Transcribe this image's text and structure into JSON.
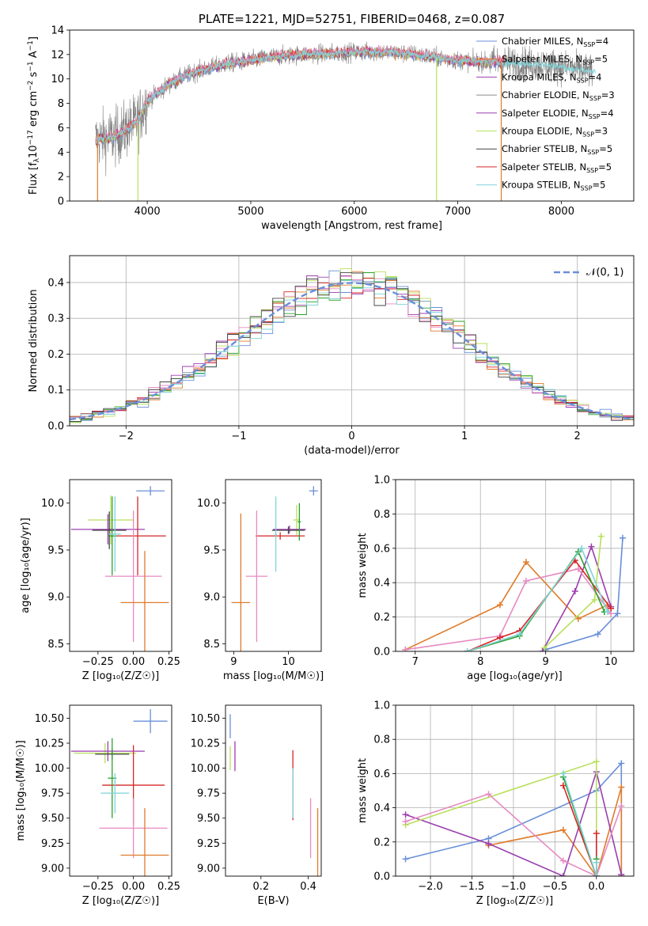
{
  "figure": {
    "colors": [
      "#6a8fd8",
      "#e07b2a",
      "#9b3fb0",
      "#b7e05a",
      "#8c8c8c",
      "#d62728",
      "#e78ac3",
      "#2ca02c",
      "#7fd3d8",
      "#444444"
    ]
  },
  "chart_data": [
    {
      "id": "spectrum",
      "type": "line",
      "title": "PLATE=1221, MJD=52751, FIBERID=0468, z=0.087",
      "xlabel": "wavelength [Angstrom, rest frame]",
      "ylabel_parts": [
        "Flux [f",
        "λ",
        "10",
        "−17",
        " erg cm",
        "−2",
        " s",
        "−1",
        " A",
        "−1",
        "]"
      ],
      "xlim": [
        3250,
        8700
      ],
      "ylim": [
        0,
        14
      ],
      "xticks": [
        4000,
        5000,
        6000,
        7000,
        8000
      ],
      "yticks": [
        0,
        2,
        4,
        6,
        8,
        10,
        12,
        14
      ],
      "continuum": [
        [
          3500,
          5.0
        ],
        [
          3700,
          5.3
        ],
        [
          3900,
          6.5
        ],
        [
          4000,
          8.2
        ],
        [
          4200,
          9.5
        ],
        [
          4400,
          10.4
        ],
        [
          4600,
          10.9
        ],
        [
          4800,
          11.3
        ],
        [
          5000,
          11.5
        ],
        [
          5200,
          11.8
        ],
        [
          5500,
          12.0
        ],
        [
          5800,
          12.1
        ],
        [
          6000,
          12.2
        ],
        [
          6300,
          12.2
        ],
        [
          6600,
          12.0
        ],
        [
          6900,
          11.6
        ],
        [
          7200,
          11.4
        ],
        [
          7500,
          11.3
        ],
        [
          7800,
          11.2
        ],
        [
          8000,
          11.0
        ],
        [
          8300,
          10.6
        ]
      ],
      "spikes": [
        {
          "x": 3520,
          "color": "#e07b2a",
          "y": 0
        },
        {
          "x": 3910,
          "color": "#b7e05a",
          "y": 0
        },
        {
          "x": 6795,
          "color": "#b7e05a",
          "y": 0
        },
        {
          "x": 7420,
          "color": "#e07b2a",
          "y": 0
        }
      ],
      "legend": [
        {
          "pre": "Chabrier MILES, N",
          "sub": "SSP",
          "post": "=4",
          "color": "#6a8fd8"
        },
        {
          "pre": "Salpeter MILES, N",
          "sub": "SSP",
          "post": "=5",
          "color": "#e07b2a"
        },
        {
          "pre": "Kroupa MILES, N",
          "sub": "SSP",
          "post": "=4",
          "color": "#9b3fb0"
        },
        {
          "pre": "Chabrier ELODIE, N",
          "sub": "SSP",
          "post": "=3",
          "color": "#8c8c8c"
        },
        {
          "pre": "Salpeter ELODIE, N",
          "sub": "SSP",
          "post": "=4",
          "color": "#9b3fb0"
        },
        {
          "pre": "Kroupa ELODIE, N",
          "sub": "SSP",
          "post": "=3",
          "color": "#b7e05a"
        },
        {
          "pre": "Chabrier STELIB, N",
          "sub": "SSP",
          "post": "=5",
          "color": "#444444"
        },
        {
          "pre": "Salpeter STELIB, N",
          "sub": "SSP",
          "post": "=5",
          "color": "#d62728"
        },
        {
          "pre": "Kroupa STELIB, N",
          "sub": "SSP",
          "post": "=5",
          "color": "#7fd3d8"
        }
      ]
    },
    {
      "id": "residuals",
      "type": "line",
      "xlabel": "(data-model)/error",
      "ylabel": "Normed distribution",
      "xlim": [
        -2.5,
        2.5
      ],
      "ylim": [
        0,
        0.475
      ],
      "xticks": [
        -2,
        -1,
        0,
        1,
        2
      ],
      "yticks": [
        0.0,
        0.1,
        0.2,
        0.3,
        0.4
      ],
      "bin_width": 0.1,
      "legend": {
        "label": "𝒩(0, 1)",
        "color": "#6a8fd8"
      },
      "grid": true
    },
    {
      "id": "age-vs-Z",
      "type": "scatter",
      "xlabel": "Z [log₁₀(Z/Z☉)]",
      "ylabel": "age  [log₁₀(age/yr)]",
      "xlim": [
        -0.45,
        0.27
      ],
      "ylim": [
        8.42,
        10.25
      ],
      "xticks": [
        -0.25,
        0.0,
        0.25
      ],
      "yticks": [
        8.5,
        9.0,
        9.5,
        10.0
      ],
      "points": [
        {
          "x": 0.12,
          "y": 10.13,
          "xerr": 0.1,
          "yerr": 0.05,
          "color": "#6a8fd8"
        },
        {
          "x": -0.16,
          "y": 9.82,
          "xerr": 0.16,
          "yerr": 0.26,
          "color": "#b7e05a"
        },
        {
          "x": -0.18,
          "y": 9.72,
          "xerr": 0.26,
          "yerr": 0.16,
          "color": "#9b3fb0"
        },
        {
          "x": -0.17,
          "y": 9.71,
          "xerr": 0.12,
          "yerr": 0.2,
          "color": "#444444"
        },
        {
          "x": 0.03,
          "y": 9.65,
          "xerr": 0.2,
          "yerr": 0.42,
          "color": "#d62728"
        },
        {
          "x": -0.15,
          "y": 9.65,
          "xerr": 0.03,
          "yerr": 0.42,
          "color": "#2ca02c"
        },
        {
          "x": -0.13,
          "y": 9.67,
          "xerr": 0.04,
          "yerr": 0.4,
          "color": "#7fd3d8"
        },
        {
          "x": 0.0,
          "y": 9.22,
          "xerr": 0.2,
          "yerr": 0.7,
          "color": "#e78ac3"
        },
        {
          "x": 0.08,
          "y": 8.94,
          "xerr": 0.17,
          "yerr": 0.55,
          "color": "#e07b2a"
        }
      ]
    },
    {
      "id": "age-vs-mass",
      "type": "scatter",
      "xlabel": "mass [log₁₀(M/M☉)]",
      "ylabel": "",
      "xlim": [
        8.85,
        10.6
      ],
      "ylim": [
        8.42,
        10.25
      ],
      "xticks": [
        9,
        10
      ],
      "yticks": [
        8.5,
        9.0,
        9.5,
        10.0
      ],
      "points": [
        {
          "x": 10.46,
          "y": 10.13,
          "xerr": 0.08,
          "yerr": 0.05,
          "color": "#6a8fd8"
        },
        {
          "x": 10.15,
          "y": 9.82,
          "xerr": 0.06,
          "yerr": 0.16,
          "color": "#b7e05a"
        },
        {
          "x": 10.02,
          "y": 9.72,
          "xerr": 0.3,
          "yerr": 0.04,
          "color": "#9b3fb0"
        },
        {
          "x": 10.0,
          "y": 9.71,
          "xerr": 0.3,
          "yerr": 0.04,
          "color": "#444444"
        },
        {
          "x": 9.85,
          "y": 9.65,
          "xerr": 0.45,
          "yerr": 0.04,
          "color": "#d62728"
        },
        {
          "x": 10.2,
          "y": 9.8,
          "xerr": 0.03,
          "yerr": 0.2,
          "color": "#2ca02c"
        },
        {
          "x": 9.77,
          "y": 9.67,
          "xerr": 0.02,
          "yerr": 0.4,
          "color": "#7fd3d8"
        },
        {
          "x": 9.42,
          "y": 9.22,
          "xerr": 0.2,
          "yerr": 0.7,
          "color": "#e78ac3"
        },
        {
          "x": 9.13,
          "y": 8.94,
          "xerr": 0.17,
          "yerr": 0.95,
          "color": "#e07b2a"
        }
      ]
    },
    {
      "id": "weight-vs-age",
      "type": "line",
      "xlabel": "age  [log₁₀(age/yr)]",
      "ylabel": "mass weight",
      "xlim": [
        6.7,
        10.35
      ],
      "ylim": [
        0,
        1.0
      ],
      "xticks": [
        7,
        8,
        9,
        10
      ],
      "yticks": [
        0.0,
        0.2,
        0.4,
        0.6,
        0.8,
        1.0
      ],
      "grid": true,
      "series": [
        {
          "color": "#6a8fd8",
          "x": [
            9.0,
            9.8,
            10.1,
            10.18
          ],
          "y": [
            0.01,
            0.1,
            0.22,
            0.66
          ]
        },
        {
          "color": "#e07b2a",
          "x": [
            6.85,
            8.3,
            8.7,
            9.5,
            9.95
          ],
          "y": [
            0.01,
            0.27,
            0.52,
            0.19,
            0.27
          ]
        },
        {
          "color": "#9b3fb0",
          "x": [
            8.95,
            9.45,
            9.7,
            10.0
          ],
          "y": [
            0.0,
            0.35,
            0.61,
            0.26
          ]
        },
        {
          "color": "#b7e05a",
          "x": [
            8.98,
            9.75,
            9.85
          ],
          "y": [
            0.02,
            0.3,
            0.67
          ]
        },
        {
          "color": "#e78ac3",
          "x": [
            6.85,
            8.3,
            8.7,
            9.5,
            10.0
          ],
          "y": [
            0.01,
            0.09,
            0.41,
            0.48,
            0.22
          ]
        },
        {
          "color": "#d62728",
          "x": [
            7.8,
            8.3,
            8.6,
            9.45,
            10.0
          ],
          "y": [
            0.0,
            0.08,
            0.12,
            0.53,
            0.25
          ]
        },
        {
          "color": "#2ca02c",
          "x": [
            7.8,
            8.6,
            9.5,
            9.9
          ],
          "y": [
            0.0,
            0.09,
            0.58,
            0.23
          ]
        },
        {
          "color": "#7fd3d8",
          "x": [
            7.8,
            8.6,
            9.55,
            9.95
          ],
          "y": [
            0.0,
            0.1,
            0.6,
            0.23
          ]
        }
      ]
    },
    {
      "id": "mass-vs-Z",
      "type": "scatter",
      "xlabel": "Z [log₁₀(Z/Z☉)]",
      "ylabel": "mass [log₁₀(M/M☉)]",
      "xlim": [
        -0.45,
        0.27
      ],
      "ylim": [
        8.92,
        10.63
      ],
      "xticks": [
        -0.25,
        0.0,
        0.25
      ],
      "yticks": [
        9.0,
        9.25,
        9.5,
        9.75,
        10.0,
        10.25,
        10.5
      ],
      "points": [
        {
          "x": 0.12,
          "y": 10.47,
          "xerr": 0.12,
          "yerr": 0.12,
          "color": "#6a8fd8"
        },
        {
          "x": -0.2,
          "y": 10.15,
          "xerr": 0.22,
          "yerr": 0.1,
          "color": "#b7e05a"
        },
        {
          "x": -0.18,
          "y": 10.17,
          "xerr": 0.26,
          "yerr": 0.1,
          "color": "#9b3fb0"
        },
        {
          "x": -0.15,
          "y": 10.14,
          "xerr": 0.12,
          "yerr": 0.05,
          "color": "#444444"
        },
        {
          "x": 0.0,
          "y": 9.83,
          "xerr": 0.22,
          "yerr": 0.4,
          "color": "#d62728"
        },
        {
          "x": -0.15,
          "y": 9.9,
          "xerr": 0.03,
          "yerr": 0.4,
          "color": "#2ca02c"
        },
        {
          "x": -0.13,
          "y": 9.75,
          "xerr": 0.1,
          "yerr": 0.2,
          "color": "#7fd3d8"
        },
        {
          "x": 0.0,
          "y": 9.4,
          "xerr": 0.24,
          "yerr": 0.3,
          "color": "#e78ac3"
        },
        {
          "x": 0.08,
          "y": 9.13,
          "xerr": 0.17,
          "yerr": 0.47,
          "color": "#e07b2a"
        }
      ]
    },
    {
      "id": "mass-vs-EBV",
      "type": "scatter",
      "xlabel": "E(B-V)",
      "ylabel": "",
      "xlim": [
        0.05,
        0.455
      ],
      "ylim": [
        8.92,
        10.63
      ],
      "xticks": [
        0.2,
        0.4
      ],
      "yticks": [
        9.0,
        9.25,
        9.5,
        9.75,
        10.0,
        10.25,
        10.5
      ],
      "points": [
        {
          "x": 0.07,
          "y": 10.42,
          "xerr": 0.0,
          "yerr": 0.12,
          "color": "#6a8fd8"
        },
        {
          "x": 0.07,
          "y": 10.1,
          "xerr": 0.0,
          "yerr": 0.12,
          "color": "#b7e05a"
        },
        {
          "x": 0.09,
          "y": 10.12,
          "xerr": 0.0,
          "yerr": 0.15,
          "color": "#9b3fb0"
        },
        {
          "x": 0.335,
          "y": 9.83,
          "xerr": 0.0,
          "yerr": 0.35,
          "color": "#d62728"
        },
        {
          "x": 0.335,
          "y": 9.75,
          "xerr": 0.0,
          "yerr": 0.25,
          "color": "#7fd3d8"
        },
        {
          "x": 0.41,
          "y": 9.4,
          "xerr": 0.0,
          "yerr": 0.3,
          "color": "#e78ac3"
        },
        {
          "x": 0.44,
          "y": 9.13,
          "xerr": 0.0,
          "yerr": 0.47,
          "color": "#e07b2a"
        }
      ]
    },
    {
      "id": "weight-vs-Z",
      "type": "line",
      "xlabel": "Z [log₁₀(Z/Z☉)]",
      "ylabel": "mass weight",
      "xlim": [
        -2.42,
        0.45
      ],
      "ylim": [
        0,
        1.0
      ],
      "xticks": [
        -2.0,
        -1.5,
        -1.0,
        -0.5,
        0.0
      ],
      "yticks": [
        0.0,
        0.2,
        0.4,
        0.6,
        0.8,
        1.0
      ],
      "grid": true,
      "series": [
        {
          "color": "#6a8fd8",
          "x": [
            -2.3,
            -1.3,
            0.0,
            0.3,
            0.3
          ],
          "y": [
            0.1,
            0.22,
            0.5,
            0.66,
            0.0
          ]
        },
        {
          "color": "#e07b2a",
          "x": [
            -1.3,
            -0.4,
            0.0,
            0.3,
            0.3
          ],
          "y": [
            0.18,
            0.27,
            0.0,
            0.52,
            0.0
          ]
        },
        {
          "color": "#9b3fb0",
          "x": [
            -2.3,
            -1.3,
            -0.4,
            0.0,
            0.3
          ],
          "y": [
            0.36,
            0.19,
            0.0,
            0.61,
            0.01
          ]
        },
        {
          "color": "#b7e05a",
          "x": [
            -2.3,
            0.0,
            0.0
          ],
          "y": [
            0.3,
            0.67,
            0.0
          ]
        },
        {
          "color": "#e78ac3",
          "x": [
            -2.3,
            -1.3,
            -0.4,
            0.0,
            0.3
          ],
          "y": [
            0.32,
            0.48,
            0.09,
            0.0,
            0.41
          ]
        },
        {
          "color": "#d62728",
          "x": [
            -0.4,
            0.0,
            0.0
          ],
          "y": [
            0.53,
            0.0,
            0.25
          ]
        },
        {
          "color": "#2ca02c",
          "x": [
            -0.4,
            0.0,
            0.0
          ],
          "y": [
            0.58,
            0.0,
            0.1
          ]
        },
        {
          "color": "#7fd3d8",
          "x": [
            -0.4,
            0.0,
            0.0
          ],
          "y": [
            0.6,
            0.0,
            0.08
          ]
        }
      ]
    }
  ]
}
